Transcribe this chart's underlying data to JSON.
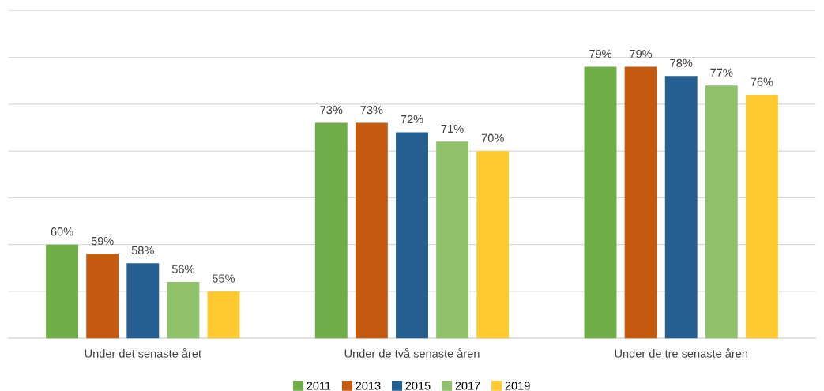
{
  "chart_data": {
    "type": "bar",
    "categories": [
      "Under det senaste året",
      "Under de två senaste åren",
      "Under de tre senaste åren"
    ],
    "series": [
      {
        "name": "2011",
        "color": "#70ad47",
        "values": [
          60,
          73,
          79
        ],
        "value_labels": [
          "60%",
          "73%",
          "79%"
        ]
      },
      {
        "name": "2013",
        "color": "#c55a11",
        "values": [
          59,
          73,
          79
        ],
        "value_labels": [
          "59%",
          "73%",
          "79%"
        ]
      },
      {
        "name": "2015",
        "color": "#255e91",
        "values": [
          58,
          72,
          78
        ],
        "value_labels": [
          "58%",
          "72%",
          "78%"
        ]
      },
      {
        "name": "2017",
        "color": "#8fc16a",
        "values": [
          56,
          71,
          77
        ],
        "value_labels": [
          "56%",
          "71%",
          "77%"
        ]
      },
      {
        "name": "2019",
        "color": "#ffca2f",
        "values": [
          55,
          70,
          76
        ],
        "value_labels": [
          "55%",
          "70%",
          "76%"
        ]
      }
    ],
    "ylim": [
      50,
      85
    ],
    "yticks": [
      {
        "value": 50,
        "label": null
      },
      {
        "value": 55,
        "label": null
      },
      {
        "value": 60,
        "label": null
      },
      {
        "value": 65,
        "label": null
      },
      {
        "value": 70,
        "label": null
      },
      {
        "value": 75,
        "label": null
      },
      {
        "value": 80,
        "label": null
      },
      {
        "value": 85,
        "label": null
      }
    ],
    "tick_labels": "x",
    "grid": "y",
    "legend": "bottom"
  }
}
